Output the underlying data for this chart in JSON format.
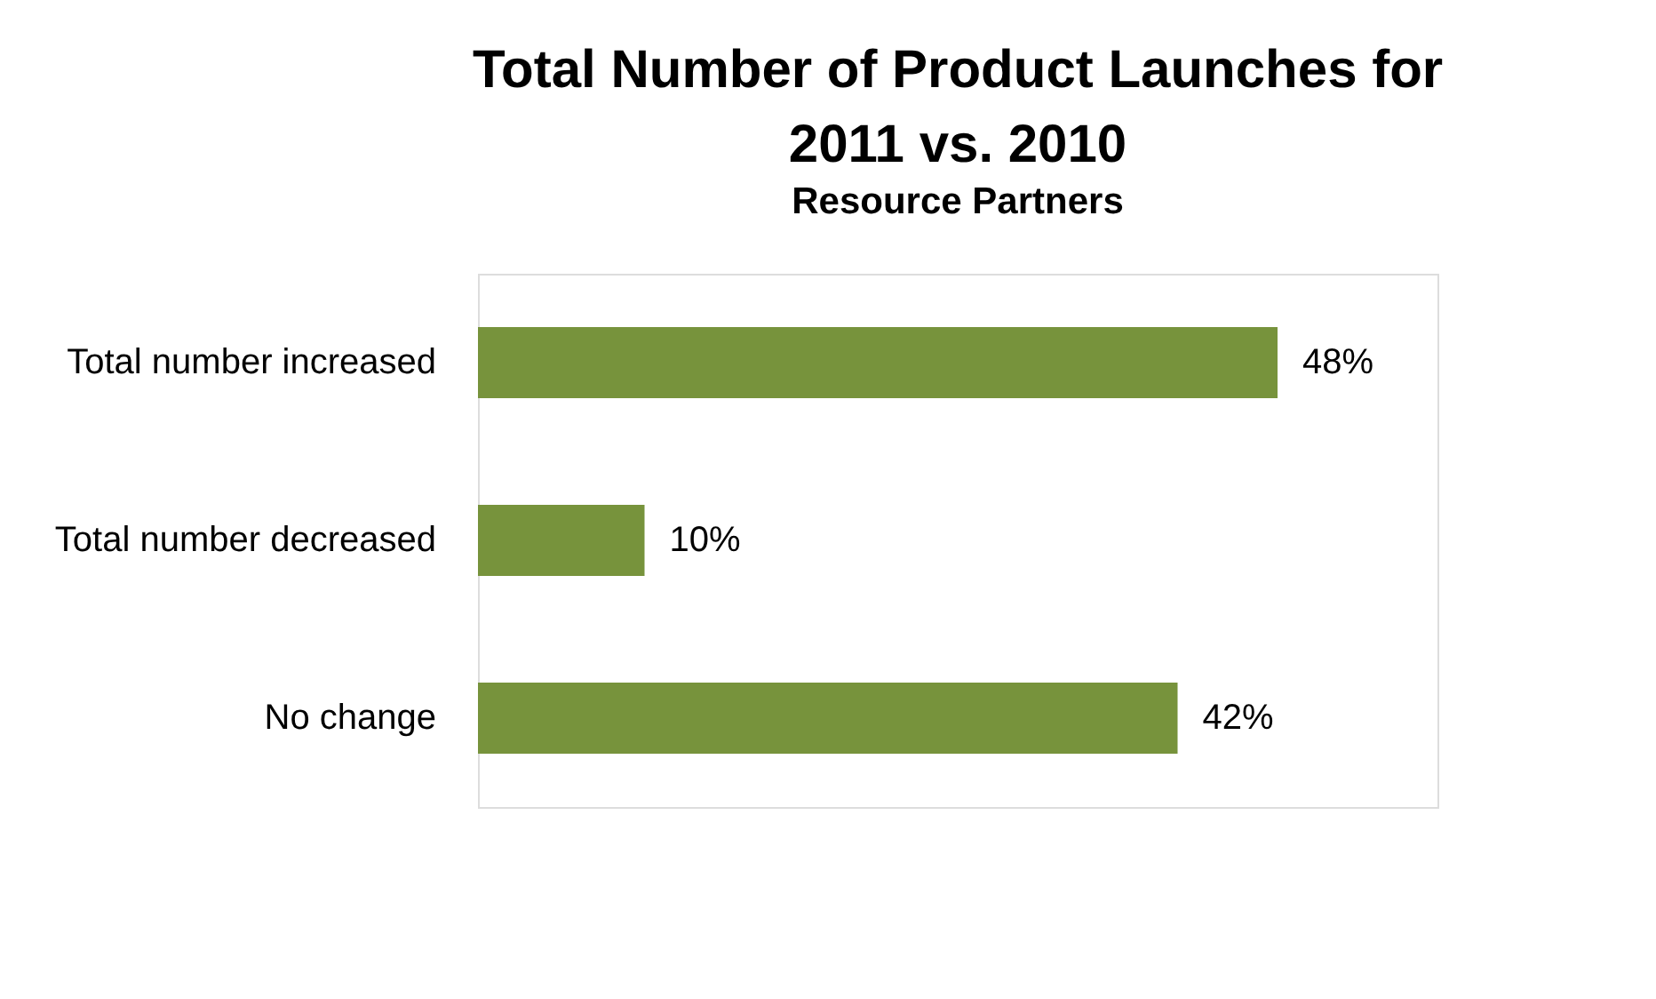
{
  "chart_data": {
    "type": "bar",
    "orientation": "horizontal",
    "title": "Total Number of Product Launches for 2011 vs. 2010",
    "subtitle": "Resource Partners",
    "categories": [
      "Total number increased",
      "Total number decreased",
      "No change"
    ],
    "values": [
      48,
      10,
      42
    ],
    "color": "#77933c",
    "value_labels": [
      "48%",
      "10%",
      "42%"
    ]
  }
}
